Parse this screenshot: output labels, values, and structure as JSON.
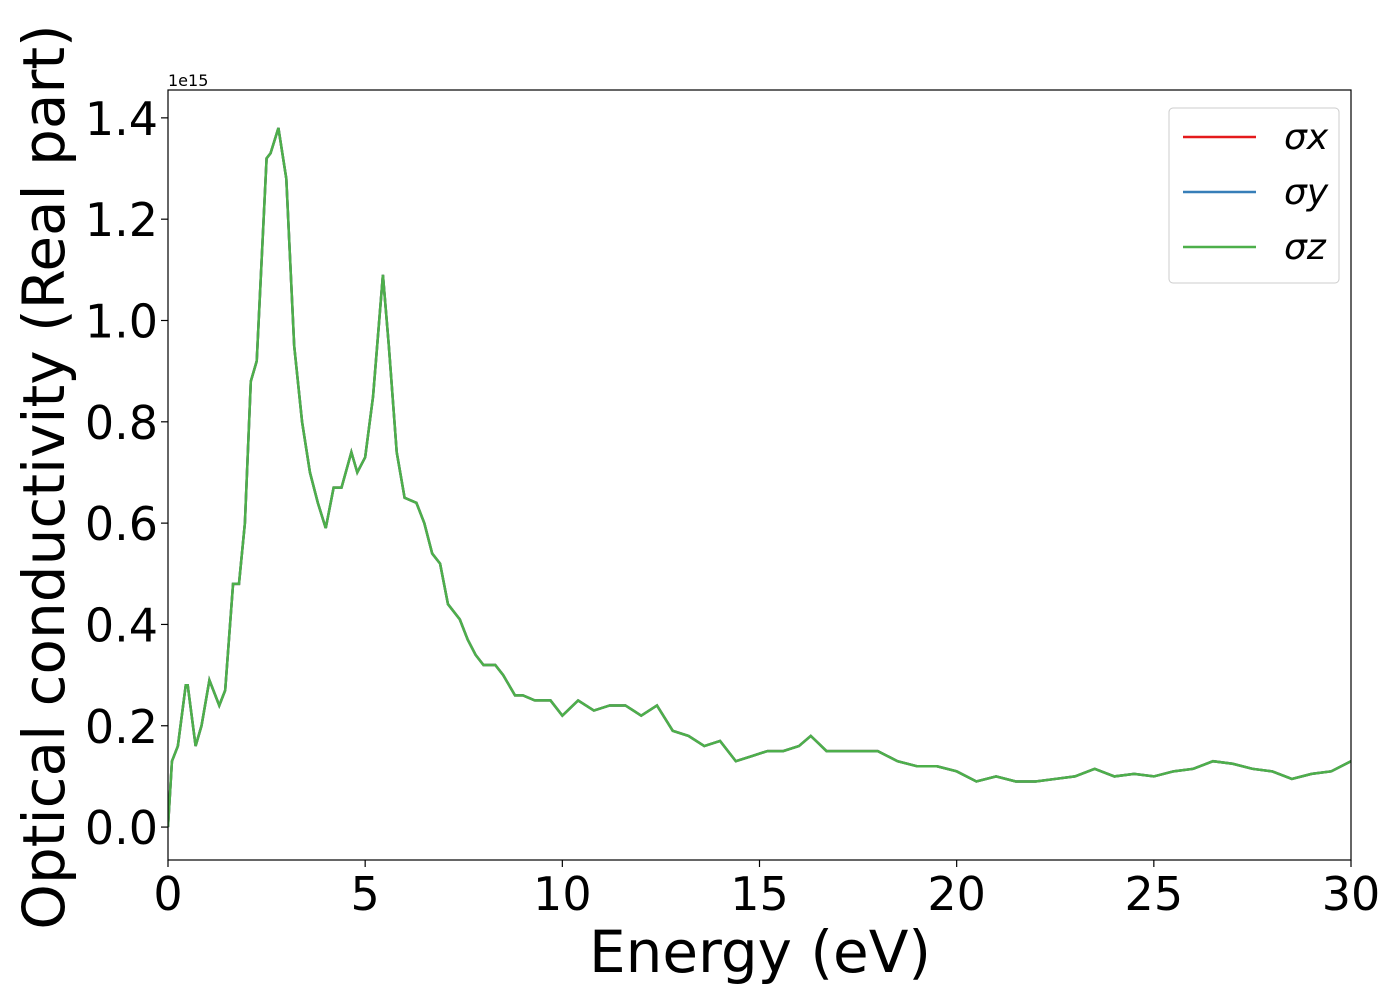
{
  "chart_data": {
    "type": "line",
    "xlabel": "Energy (eV)",
    "ylabel": "Optical conductivity (Real part)",
    "y_offset_label": "1e15",
    "x": [
      0,
      0.1,
      0.25,
      0.45,
      0.5,
      0.7,
      0.85,
      1.05,
      1.3,
      1.45,
      1.65,
      1.8,
      1.95,
      2.1,
      2.25,
      2.5,
      2.6,
      2.8,
      3.0,
      3.2,
      3.4,
      3.6,
      3.8,
      4.0,
      4.2,
      4.4,
      4.65,
      4.8,
      5.0,
      5.2,
      5.45,
      5.6,
      5.8,
      6.0,
      6.3,
      6.5,
      6.7,
      6.9,
      7.1,
      7.4,
      7.6,
      7.8,
      8.0,
      8.3,
      8.5,
      8.8,
      9.0,
      9.3,
      9.7,
      10.0,
      10.4,
      10.8,
      11.2,
      11.6,
      12.0,
      12.4,
      12.8,
      13.2,
      13.6,
      14.0,
      14.4,
      14.8,
      15.2,
      15.6,
      16.0,
      16.3,
      16.7,
      17.2,
      17.6,
      18.0,
      18.5,
      19.0,
      19.5,
      20.0,
      20.5,
      21.0,
      21.5,
      22.0,
      22.5,
      23.0,
      23.5,
      24.0,
      24.5,
      25.0,
      25.5,
      26.0,
      26.5,
      27.0,
      27.5,
      28.0,
      28.5,
      29.0,
      29.5,
      30.0
    ],
    "series": [
      {
        "name": "σx",
        "color": "#e41a1c",
        "values": [
          0.0,
          0.13,
          0.16,
          0.28,
          0.28,
          0.16,
          0.2,
          0.29,
          0.24,
          0.27,
          0.48,
          0.48,
          0.6,
          0.88,
          0.92,
          1.32,
          1.33,
          1.38,
          1.28,
          0.95,
          0.8,
          0.7,
          0.64,
          0.59,
          0.67,
          0.67,
          0.74,
          0.7,
          0.73,
          0.85,
          1.09,
          0.95,
          0.74,
          0.65,
          0.64,
          0.6,
          0.54,
          0.52,
          0.44,
          0.41,
          0.37,
          0.34,
          0.32,
          0.32,
          0.3,
          0.26,
          0.26,
          0.25,
          0.25,
          0.22,
          0.25,
          0.23,
          0.24,
          0.24,
          0.22,
          0.24,
          0.19,
          0.18,
          0.16,
          0.17,
          0.13,
          0.14,
          0.15,
          0.15,
          0.16,
          0.18,
          0.15,
          0.15,
          0.15,
          0.15,
          0.13,
          0.12,
          0.12,
          0.11,
          0.09,
          0.1,
          0.09,
          0.09,
          0.095,
          0.1,
          0.115,
          0.1,
          0.105,
          0.1,
          0.11,
          0.115,
          0.13,
          0.125,
          0.115,
          0.11,
          0.095,
          0.105,
          0.11,
          0.13
        ]
      },
      {
        "name": "σy",
        "color": "#377eb8",
        "values": [
          0.0,
          0.13,
          0.16,
          0.28,
          0.28,
          0.16,
          0.2,
          0.29,
          0.24,
          0.27,
          0.48,
          0.48,
          0.6,
          0.88,
          0.92,
          1.32,
          1.33,
          1.38,
          1.28,
          0.95,
          0.8,
          0.7,
          0.64,
          0.59,
          0.67,
          0.67,
          0.74,
          0.7,
          0.73,
          0.85,
          1.09,
          0.95,
          0.74,
          0.65,
          0.64,
          0.6,
          0.54,
          0.52,
          0.44,
          0.41,
          0.37,
          0.34,
          0.32,
          0.32,
          0.3,
          0.26,
          0.26,
          0.25,
          0.25,
          0.22,
          0.25,
          0.23,
          0.24,
          0.24,
          0.22,
          0.24,
          0.19,
          0.18,
          0.16,
          0.17,
          0.13,
          0.14,
          0.15,
          0.15,
          0.16,
          0.18,
          0.15,
          0.15,
          0.15,
          0.15,
          0.13,
          0.12,
          0.12,
          0.11,
          0.09,
          0.1,
          0.09,
          0.09,
          0.095,
          0.1,
          0.115,
          0.1,
          0.105,
          0.1,
          0.11,
          0.115,
          0.13,
          0.125,
          0.115,
          0.11,
          0.095,
          0.105,
          0.11,
          0.13
        ]
      },
      {
        "name": "σz",
        "color": "#4daf4a",
        "values": [
          0.0,
          0.13,
          0.16,
          0.28,
          0.28,
          0.16,
          0.2,
          0.29,
          0.24,
          0.27,
          0.48,
          0.48,
          0.6,
          0.88,
          0.92,
          1.32,
          1.33,
          1.38,
          1.28,
          0.95,
          0.8,
          0.7,
          0.64,
          0.59,
          0.67,
          0.67,
          0.74,
          0.7,
          0.73,
          0.85,
          1.09,
          0.95,
          0.74,
          0.65,
          0.64,
          0.6,
          0.54,
          0.52,
          0.44,
          0.41,
          0.37,
          0.34,
          0.32,
          0.32,
          0.3,
          0.26,
          0.26,
          0.25,
          0.25,
          0.22,
          0.25,
          0.23,
          0.24,
          0.24,
          0.22,
          0.24,
          0.19,
          0.18,
          0.16,
          0.17,
          0.13,
          0.14,
          0.15,
          0.15,
          0.16,
          0.18,
          0.15,
          0.15,
          0.15,
          0.15,
          0.13,
          0.12,
          0.12,
          0.11,
          0.09,
          0.1,
          0.09,
          0.09,
          0.095,
          0.1,
          0.115,
          0.1,
          0.105,
          0.1,
          0.11,
          0.115,
          0.13,
          0.125,
          0.115,
          0.11,
          0.095,
          0.105,
          0.11,
          0.13
        ]
      }
    ],
    "xlim": [
      0,
      30
    ],
    "xticks": [
      0,
      5,
      10,
      15,
      20,
      25,
      30
    ],
    "ylim": [
      -0.065,
      1.455
    ],
    "yticks": [
      {
        "value": 0,
        "label": "0.0"
      },
      0.2,
      0.4,
      0.6,
      0.8,
      {
        "value": 1,
        "label": "1.0"
      },
      1.2,
      1.4
    ],
    "legend": "upper right",
    "grid": false
  }
}
